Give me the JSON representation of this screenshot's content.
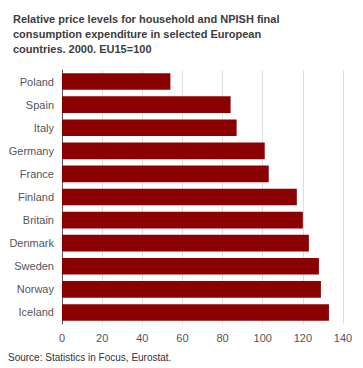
{
  "chart_data": {
    "type": "bar",
    "title": "Relative price levels for household and NPISH final\nconsumption expenditure in selected European\ncountries. 2000. EU15=100",
    "categories": [
      "Poland",
      "Spain",
      "Italy",
      "Germany",
      "France",
      "Finland",
      "Britain",
      "Denmark",
      "Sweden",
      "Norway",
      "Iceland"
    ],
    "values": [
      54,
      84,
      87,
      101,
      103,
      117,
      120,
      123,
      128,
      129,
      133
    ],
    "color": "#8B0000",
    "orientation": "horizontal",
    "xlim": [
      0,
      140
    ],
    "xticks": [
      0,
      20,
      40,
      60,
      80,
      100,
      120,
      140
    ],
    "grid": true,
    "annotations": [
      "Source: Statistics in Focus, Eurostat."
    ]
  }
}
